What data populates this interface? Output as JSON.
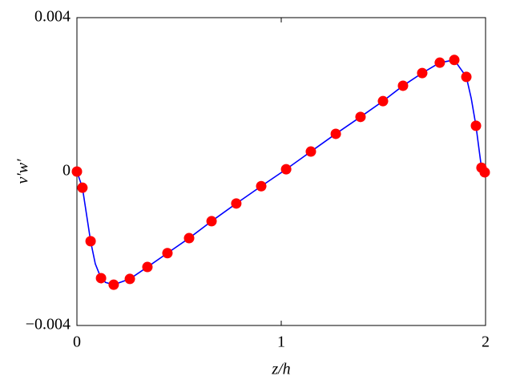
{
  "chart_data": {
    "type": "line",
    "x_label": "z/h",
    "y_label": "v′w′",
    "xlim": [
      0,
      2
    ],
    "ylim": [
      -0.004,
      0.004
    ],
    "xticks": [
      0,
      1,
      2
    ],
    "yticks": [
      {
        "value": -0.004,
        "label": "−0.004"
      },
      0,
      0.004
    ],
    "series": [
      {
        "type": "line",
        "color": "#0000ff",
        "x": [
          0,
          0.027,
          0.067,
          0.09,
          0.118,
          0.14,
          0.18,
          0.259,
          0.345,
          0.443,
          0.549,
          0.659,
          0.78,
          0.902,
          1.024,
          1.145,
          1.267,
          1.388,
          1.498,
          1.596,
          1.69,
          1.776,
          1.847,
          1.906,
          1.93,
          1.953,
          1.97,
          1.98,
          1.996
        ],
        "values": [
          0,
          -0.00042,
          -0.00181,
          -0.0024,
          -0.00277,
          -0.00288,
          -0.00294,
          -0.00279,
          -0.00248,
          -0.00212,
          -0.00173,
          -0.00129,
          -0.00083,
          -0.00038,
          6e-05,
          0.00052,
          0.00098,
          0.00142,
          0.00183,
          0.00223,
          0.00256,
          0.00283,
          0.0029,
          0.00246,
          0.0019,
          0.00119,
          0.0005,
          0.0001,
          -2e-05
        ]
      },
      {
        "type": "scatter",
        "color": "#ff0000",
        "x": [
          0,
          0.027,
          0.067,
          0.118,
          0.18,
          0.259,
          0.345,
          0.443,
          0.549,
          0.659,
          0.78,
          0.902,
          1.024,
          1.145,
          1.267,
          1.388,
          1.498,
          1.596,
          1.69,
          1.776,
          1.847,
          1.906,
          1.953,
          1.98,
          1.996
        ],
        "values": [
          0,
          -0.00042,
          -0.00181,
          -0.00277,
          -0.00294,
          -0.00279,
          -0.00248,
          -0.00212,
          -0.00173,
          -0.00129,
          -0.00083,
          -0.00038,
          6e-05,
          0.00052,
          0.00098,
          0.00142,
          0.00183,
          0.00223,
          0.00256,
          0.00283,
          0.0029,
          0.00246,
          0.00119,
          0.0001,
          -2e-05
        ]
      }
    ]
  }
}
